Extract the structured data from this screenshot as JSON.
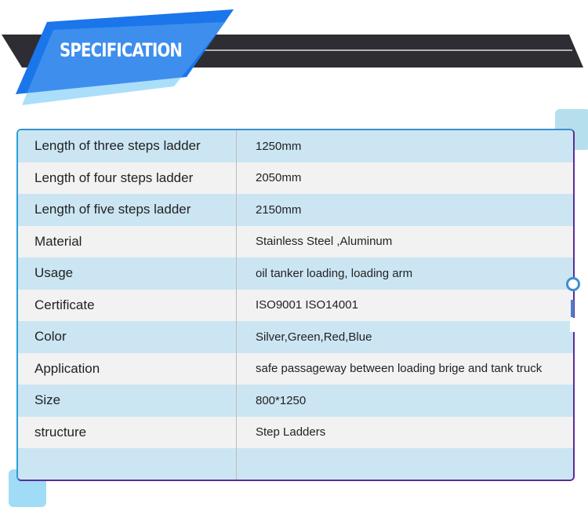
{
  "header": {
    "title": "SPECIFICATION"
  },
  "colors": {
    "accent": "#1a7ff0",
    "frame": "#5a2d9a",
    "row_blue": "#cbe6f2",
    "row_gray": "#f2f2f2"
  },
  "rows": [
    {
      "label": "Length of  three steps ladder",
      "value": "1250mm"
    },
    {
      "label": "Length of  four steps ladder",
      "value": "2050mm"
    },
    {
      "label": "Length of  five steps ladder",
      "value": "2150mm"
    },
    {
      "label": "Material",
      "value": "Stainless Steel ,Aluminum"
    },
    {
      "label": "Usage",
      "value": "oil tanker loading, loading arm"
    },
    {
      "label": "Certificate",
      "value": "ISO9001 ISO14001"
    },
    {
      "label": "Color",
      "value": "Silver,Green,Red,Blue"
    },
    {
      "label": "Application",
      "value": "safe passageway between loading brige and tank truck"
    },
    {
      "label": "Size",
      "value": "800*1250"
    },
    {
      "label": "structure",
      "value": "Step Ladders"
    },
    {
      "label": "",
      "value": ""
    }
  ]
}
